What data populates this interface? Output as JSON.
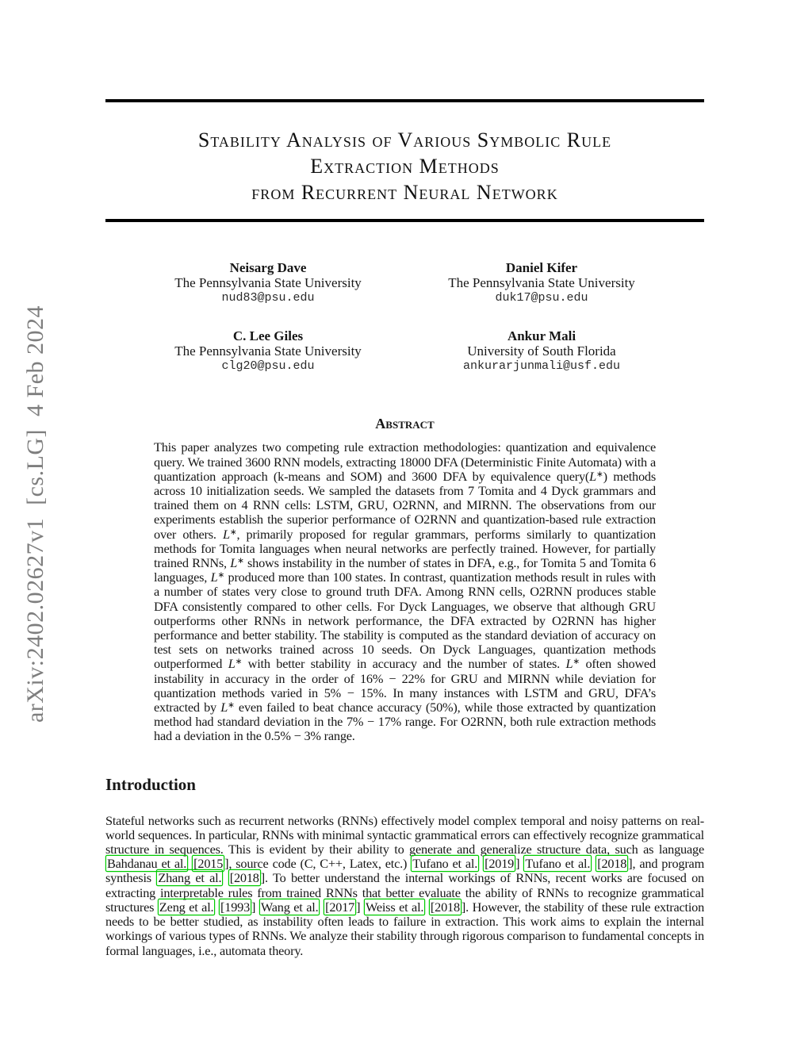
{
  "watermark": {
    "text": "arXiv:2402.02627v1  [cs.LG]  4 Feb 2024"
  },
  "colors": {
    "citation_box": "#00cc00",
    "watermark_gray": "#7e7e7e",
    "rule_black": "#000000"
  },
  "title": {
    "lines": [
      "Stability Analysis of Various Symbolic Rule",
      "Extraction Methods",
      "from Recurrent Neural Network"
    ]
  },
  "authors": [
    {
      "name": "Neisarg Dave",
      "affiliation": "The Pennsylvania State University",
      "email": "nud83@psu.edu"
    },
    {
      "name": "Daniel Kifer",
      "affiliation": "The Pennsylvania State University",
      "email": "duk17@psu.edu"
    },
    {
      "name": "C. Lee Giles",
      "affiliation": "The Pennsylvania State University",
      "email": "clg20@psu.edu"
    },
    {
      "name": "Ankur Mali",
      "affiliation": "University of South Florida",
      "email": "ankurarjunmali@usf.edu"
    }
  ],
  "abstract": {
    "heading": "Abstract",
    "segments": [
      {
        "text": "This paper analyzes two competing rule extraction methodologies: quantization and equivalence query. We trained 3600 RNN models, extracting 18000 DFA (Deterministic Finite Automata) with a quantization approach (k-means and SOM) and 3600 DFA by equivalence query("
      },
      {
        "text": "L",
        "i": true
      },
      {
        "text": "∗",
        "sup": true
      },
      {
        "text": ") methods across 10 initialization seeds. We sampled the datasets from 7 Tomita and 4 Dyck grammars and trained them on 4 RNN cells: LSTM, GRU, O2RNN, and MIRNN. The observations from our experiments establish the superior performance of O2RNN and quantization-based rule extraction over others. "
      },
      {
        "text": "L",
        "i": true
      },
      {
        "text": "∗",
        "sup": true
      },
      {
        "text": ", primarily proposed for regular grammars, performs similarly to quantization methods for Tomita languages when neural networks are perfectly trained. However, for partially trained RNNs, "
      },
      {
        "text": "L",
        "i": true
      },
      {
        "text": "∗",
        "sup": true
      },
      {
        "text": " shows instability in the number of states in DFA, e.g., for Tomita 5 and Tomita 6 languages, "
      },
      {
        "text": "L",
        "i": true
      },
      {
        "text": "∗",
        "sup": true
      },
      {
        "text": " produced more than 100 states. In contrast, quantization methods result in rules with a number of states very close to ground truth DFA. Among RNN cells, O2RNN produces stable DFA consistently compared to other cells. For Dyck Languages, we observe that although GRU outperforms other RNNs in network performance, the DFA extracted by O2RNN has higher performance and better stability. The stability is computed as the standard deviation of accuracy on test sets on networks trained across 10 seeds. On Dyck Languages, quantization methods outperformed "
      },
      {
        "text": "L",
        "i": true
      },
      {
        "text": "∗",
        "sup": true
      },
      {
        "text": " with better stability in accuracy and the number of states. "
      },
      {
        "text": "L",
        "i": true
      },
      {
        "text": "∗",
        "sup": true
      },
      {
        "text": " often showed instability in accuracy in the order of 16% − 22% for GRU and MIRNN while deviation for quantization methods varied in 5% − 15%. In many instances with LSTM and GRU, DFA’s extracted by "
      },
      {
        "text": "L",
        "i": true
      },
      {
        "text": "∗",
        "sup": true
      },
      {
        "text": " even failed to beat chance accuracy (50%), while those extracted by quantization method had standard deviation in the 7% − 17% range. For O2RNN, both rule extraction methods had a deviation in the 0.5% − 3% range."
      }
    ]
  },
  "introduction": {
    "heading": "Introduction",
    "segments": [
      {
        "text": "Stateful networks such as recurrent networks (RNNs) effectively model complex temporal and noisy patterns on real-world sequences. In particular, RNNs with minimal syntactic grammatical errors can effectively recognize grammatical structure in sequences. This is evident by their ability to generate and generalize structure data, such as language "
      },
      {
        "text": "Bahdanau et al.",
        "cite": true
      },
      {
        "text": " "
      },
      {
        "text": "[2015",
        "cite": true
      },
      {
        "text": "], source code (C, C++, Latex, etc.) "
      },
      {
        "text": "Tufano et al.",
        "cite": true
      },
      {
        "text": " "
      },
      {
        "text": "[2019",
        "cite": true
      },
      {
        "text": "] "
      },
      {
        "text": "Tufano et al.",
        "cite": true
      },
      {
        "text": " "
      },
      {
        "text": "[2018",
        "cite": true
      },
      {
        "text": "], and program synthesis "
      },
      {
        "text": "Zhang et al.",
        "cite": true
      },
      {
        "text": " "
      },
      {
        "text": "[2018",
        "cite": true
      },
      {
        "text": "]. To better understand the internal workings of RNNs, recent works are focused on extracting interpretable rules from trained RNNs that better evaluate the ability of RNNs to recognize grammatical structures "
      },
      {
        "text": "Zeng et al.",
        "cite": true
      },
      {
        "text": " "
      },
      {
        "text": "[1993",
        "cite": true
      },
      {
        "text": "] "
      },
      {
        "text": "Wang et al.",
        "cite": true
      },
      {
        "text": " "
      },
      {
        "text": "[2017",
        "cite": true
      },
      {
        "text": "] "
      },
      {
        "text": "Weiss et al.",
        "cite": true
      },
      {
        "text": " "
      },
      {
        "text": "[2018",
        "cite": true
      },
      {
        "text": "]. However, the stability of these rule extraction needs to be better studied, as instability often leads to failure in extraction. This work aims to explain the internal workings of various types of RNNs. We analyze their stability through rigorous comparison to fundamental concepts in formal languages, i.e., automata theory."
      }
    ]
  }
}
